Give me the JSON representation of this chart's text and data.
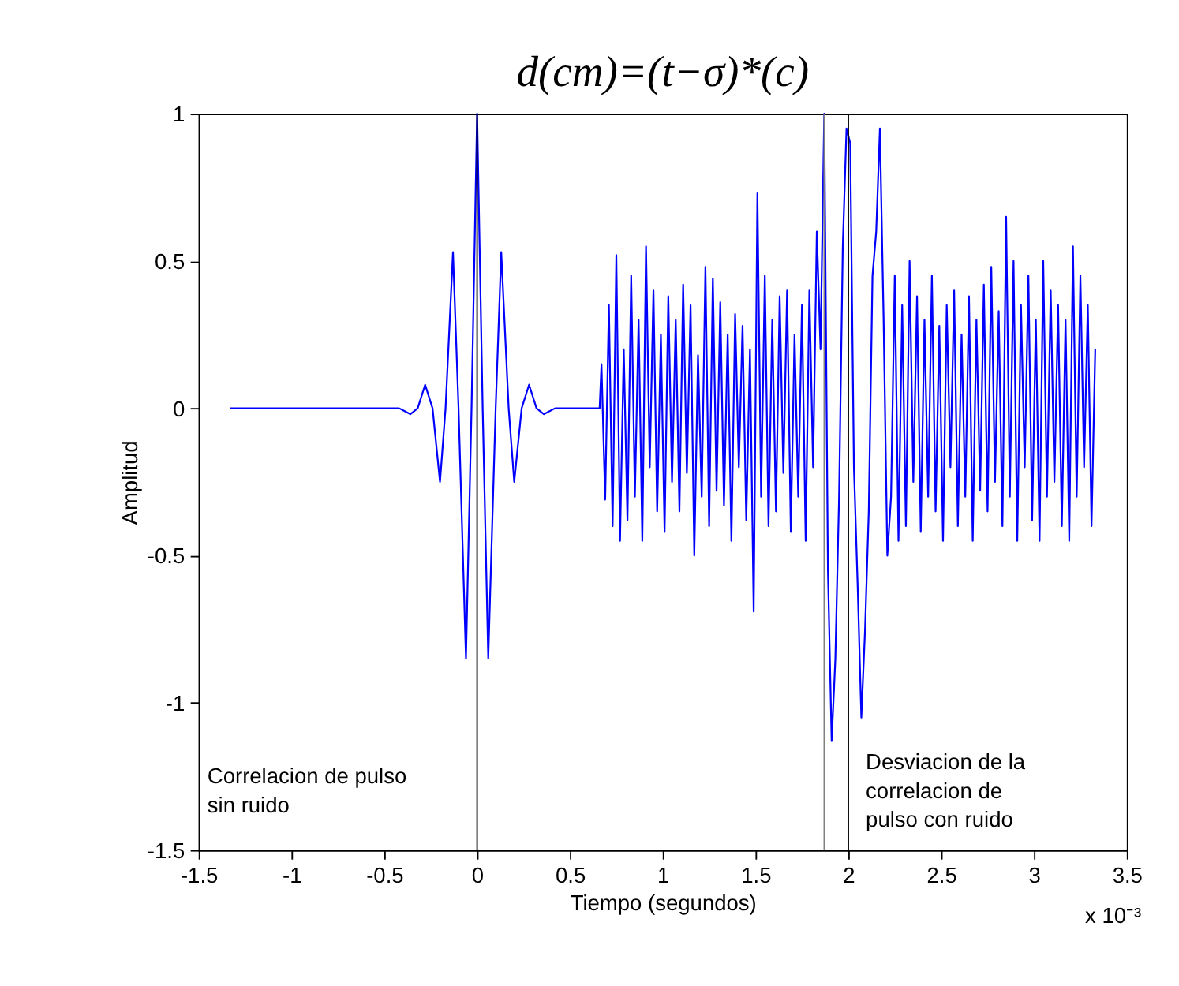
{
  "chart_data": {
    "type": "line",
    "title": "d(cm)=(t−σ)*(c)",
    "xlabel": "Tiempo (segundos)",
    "ylabel": "Amplitud",
    "series": [
      {
        "color": "#0000ff",
        "x": [
          -1.33,
          -0.42,
          -0.36,
          -0.32,
          -0.28,
          -0.24,
          -0.2,
          -0.17,
          -0.13,
          -0.1,
          -0.06,
          -0.03,
          0,
          0.03,
          0.06,
          0.1,
          0.13,
          0.17,
          0.2,
          0.24,
          0.28,
          0.32,
          0.36,
          0.42,
          0.66,
          0.67,
          0.69,
          0.71,
          0.73,
          0.75,
          0.77,
          0.79,
          0.81,
          0.83,
          0.85,
          0.87,
          0.89,
          0.91,
          0.93,
          0.95,
          0.97,
          0.99,
          1.01,
          1.03,
          1.05,
          1.07,
          1.09,
          1.11,
          1.13,
          1.15,
          1.17,
          1.19,
          1.21,
          1.23,
          1.25,
          1.27,
          1.29,
          1.31,
          1.33,
          1.35,
          1.37,
          1.39,
          1.41,
          1.43,
          1.45,
          1.47,
          1.49,
          1.51,
          1.53,
          1.55,
          1.57,
          1.59,
          1.61,
          1.63,
          1.65,
          1.67,
          1.69,
          1.71,
          1.73,
          1.75,
          1.77,
          1.79,
          1.81,
          1.83,
          1.85,
          1.87,
          1.89,
          1.91,
          1.93,
          1.95,
          1.97,
          1.99,
          2.01,
          2.03,
          2.05,
          2.07,
          2.09,
          2.11,
          2.13,
          2.15,
          2.17,
          2.19,
          2.21,
          2.23,
          2.25,
          2.27,
          2.29,
          2.31,
          2.33,
          2.35,
          2.37,
          2.39,
          2.41,
          2.43,
          2.45,
          2.47,
          2.49,
          2.51,
          2.53,
          2.55,
          2.57,
          2.59,
          2.61,
          2.63,
          2.65,
          2.67,
          2.69,
          2.71,
          2.73,
          2.75,
          2.77,
          2.79,
          2.81,
          2.83,
          2.85,
          2.87,
          2.89,
          2.91,
          2.93,
          2.95,
          2.97,
          2.99,
          3.01,
          3.03,
          3.05,
          3.07,
          3.09,
          3.11,
          3.13,
          3.15,
          3.17,
          3.19,
          3.21,
          3.23,
          3.25,
          3.27,
          3.29,
          3.31,
          3.33
        ],
        "values": [
          0,
          0,
          -0.02,
          0,
          0.08,
          0,
          -0.25,
          0,
          0.53,
          0,
          -0.85,
          0,
          1,
          0,
          -0.85,
          0,
          0.53,
          0,
          -0.25,
          0,
          0.08,
          0,
          -0.02,
          0,
          0,
          0.15,
          -0.31,
          0.35,
          -0.4,
          0.52,
          -0.45,
          0.2,
          -0.38,
          0.45,
          -0.3,
          0.3,
          -0.45,
          0.55,
          -0.2,
          0.4,
          -0.35,
          0.25,
          -0.42,
          0.38,
          -0.25,
          0.3,
          -0.35,
          0.42,
          -0.22,
          0.35,
          -0.5,
          0.18,
          -0.3,
          0.48,
          -0.4,
          0.44,
          -0.28,
          0.36,
          -0.33,
          0.25,
          -0.45,
          0.32,
          -0.2,
          0.28,
          -0.38,
          0.2,
          -0.69,
          0.73,
          -0.3,
          0.45,
          -0.4,
          0.3,
          -0.35,
          0.38,
          -0.22,
          0.4,
          -0.42,
          0.25,
          -0.3,
          0.35,
          -0.45,
          0.4,
          -0.2,
          0.6,
          0.2,
          1.0,
          -0.55,
          -1.13,
          -0.85,
          -0.3,
          0.55,
          0.95,
          0.9,
          -0.2,
          -0.6,
          -1.05,
          -0.75,
          -0.35,
          0.45,
          0.6,
          0.95,
          0.3,
          -0.5,
          -0.3,
          0.45,
          -0.45,
          0.35,
          -0.4,
          0.5,
          -0.25,
          0.38,
          -0.42,
          0.3,
          -0.3,
          0.45,
          -0.35,
          0.28,
          -0.45,
          0.35,
          -0.2,
          0.4,
          -0.4,
          0.25,
          -0.3,
          0.38,
          -0.45,
          0.3,
          -0.28,
          0.42,
          -0.35,
          0.48,
          -0.25,
          0.33,
          -0.4,
          0.65,
          -0.3,
          0.5,
          -0.45,
          0.35,
          -0.2,
          0.45,
          -0.38,
          0.3,
          -0.45,
          0.5,
          -0.3,
          0.4,
          -0.25,
          0.35,
          -0.4,
          0.3,
          -0.45,
          0.55,
          -0.3,
          0.45,
          -0.2,
          0.35,
          -0.4,
          0.2
        ]
      }
    ],
    "xlim": [
      -1.5,
      3.5
    ],
    "xticks": [
      -1.5,
      -1,
      -0.5,
      0,
      0.5,
      1,
      1.5,
      2,
      2.5,
      3,
      3.5
    ],
    "ylim": [
      -1.5,
      1
    ],
    "yticks": [
      -1.5,
      -1,
      -0.5,
      0,
      0.5,
      1
    ],
    "ref_lines": [
      {
        "axis": "x",
        "value": 0,
        "color": "#000000"
      },
      {
        "axis": "x",
        "value": 1.87,
        "color": "#808080"
      },
      {
        "axis": "x",
        "value": 2.0,
        "color": "#000000"
      }
    ],
    "annotations": [
      "Correlacion de pulso\nsin ruido",
      "Desviacion de la\ncorrelacion  de\npulso con ruido",
      "x 10⁻³"
    ],
    "grid": false,
    "legend": false,
    "marker": "none",
    "line_style": "solid"
  }
}
